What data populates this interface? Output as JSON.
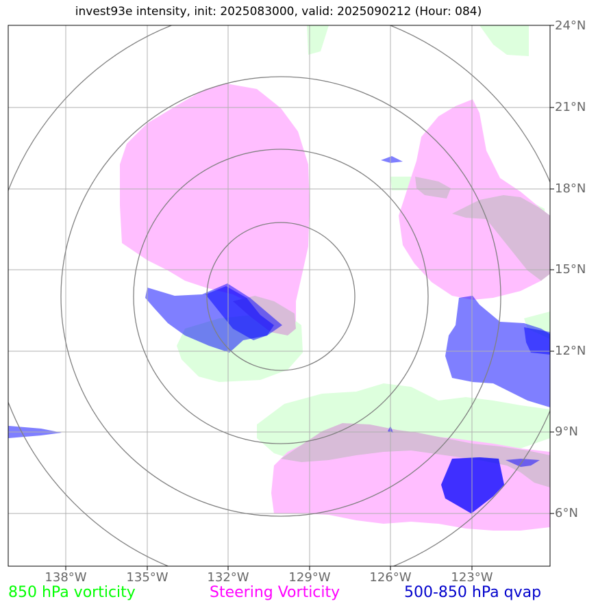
{
  "title": "invest93e intensity, init: 2025083000, valid: 2025090212 (Hour: 084)",
  "lat_labels": [
    "24°N",
    "21°N",
    "18°N",
    "15°N",
    "12°N",
    "9°N",
    "6°N"
  ],
  "lon_labels": [
    "138°W",
    "135°W",
    "132°W",
    "129°W",
    "126°W",
    "123°W"
  ],
  "legend": [
    {
      "label": "850 hPa vorticity",
      "color": "#00ff00"
    },
    {
      "label": "Steering Vorticity",
      "color": "#ff00ff"
    },
    {
      "label": "500-850 hPa qvap",
      "color": "#0000cc"
    }
  ],
  "colors": {
    "vorticity_fill": "#ddffdd",
    "steering_fill": "#ffbbff",
    "qvap_fill": "#0000ff",
    "grid": "#b0b0b0",
    "range_rings": "#808080"
  }
}
